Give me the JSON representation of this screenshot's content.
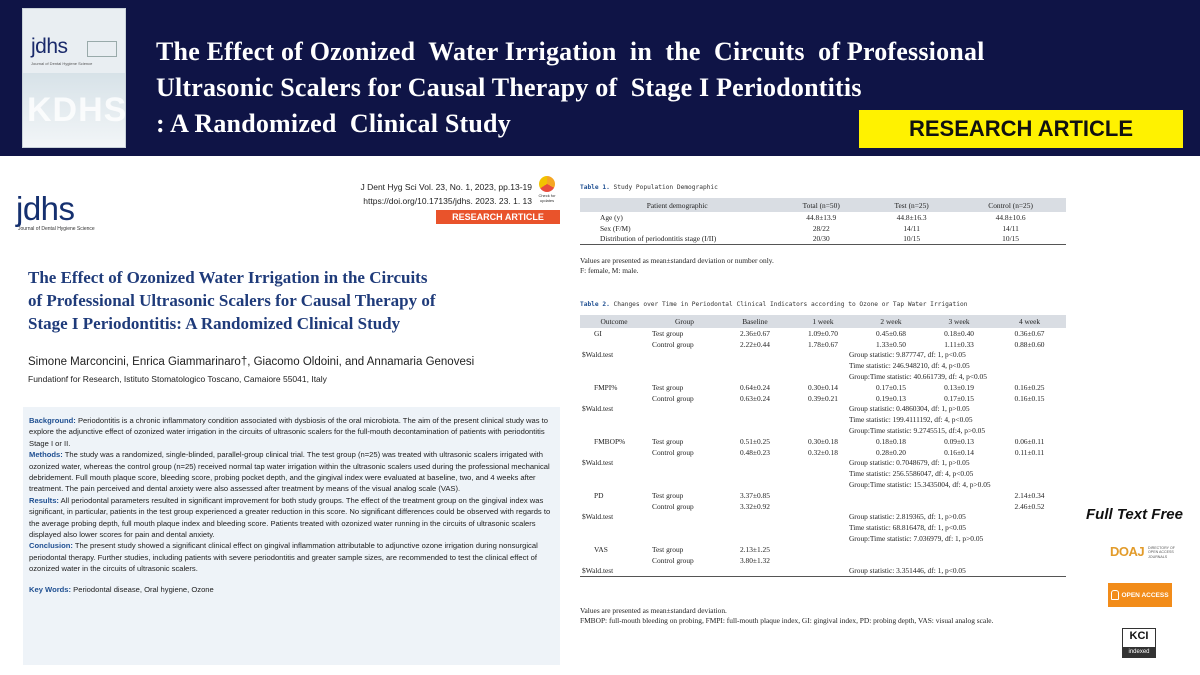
{
  "banner": {
    "title_lines": [
      "The Effect of Ozonized  Water Irrigation  in  the  Circuits  of Professional",
      "Ultrasonic Scalers for Causal Therapy of  Stage I Periodontitis",
      ": A Randomized  Clinical Study"
    ],
    "badge": "RESEARCH ARTICLE",
    "cover": {
      "logo": "jdhs",
      "subtitle": "Journal of Dental Hygiene Science",
      "watermark": "KDHS"
    }
  },
  "paper": {
    "logo": "jdhs",
    "logo_sub": "Journal of Dental Hygiene Science",
    "citation_line1": "J Dent Hyg Sci Vol. 23, No. 1, 2023, pp.13-19",
    "citation_line2": "https://doi.org/10.17135/jdhs. 2023. 23. 1. 13",
    "check_label": "Check for updates",
    "article_type": "RESEARCH ARTICLE",
    "title_lines": [
      "The Effect of Ozonized Water Irrigation in the Circuits",
      "of Professional Ultrasonic Scalers for Causal Therapy of",
      "Stage I Periodontitis: A Randomized Clinical Study"
    ],
    "authors": "Simone Marconcini, Enrica Giammarinaro†, Giacomo Oldoini, and Annamaria Genovesi",
    "affiliation": "Fundationf for Research, Istituto Stomatologico Toscano, Camaiore 55041, Italy",
    "abstract": [
      {
        "heading": "Background:",
        "text": " Periodontitis is a chronic inflammatory condition associated with dysbiosis of the oral microbiota. The aim of the present clinical study was to explore the adjunctive effect of ozonized water irrigation in the circuits of ultrasonic scalers for the full-mouth decontamination of patients with periodontitis Stage I or II."
      },
      {
        "heading": "Methods:",
        "text": " The study was a randomized, single-blinded, parallel-group clinical trial. The test group (n=25) was treated with ultrasonic scalers irrigated with ozonized water, whereas the control group (n=25) received normal tap water irrigation within the ultrasonic scalers used during the professional mechanical debridement. Full mouth plaque score, bleeding score, probing pocket depth, and the gingival index were evaluated at baseline, two, and 4 weeks after treatment. The pain perceived and dental anxiety were also assessed after treatment by means of the visual analog scale (VAS)."
      },
      {
        "heading": "Results:",
        "text": " All periodontal parameters resulted in significant improvement for both study groups. The effect of the treatment group on the gingival index was significant, in particular, patients in the test group experienced a greater reduction in this score. No significant differences could be observed with regards to the average probing depth, full mouth plaque index and bleeding score. Patients treated with ozonized water running in the circuits of ultrasonic scalers displayed also lower scores for pain and dental anxiety."
      },
      {
        "heading": "Conclusion:",
        "text": " The present study showed a significant clinical effect on gingival inflammation attributable to adjunctive ozone irrigation during nonsurgical periodontal therapy. Further studies, including patients with severe periodontitis and greater sample sizes, are recommended to test the clinical effect of ozonized water in the circuits of ultrasonic scalers."
      }
    ],
    "keywords_heading": "Key Words:",
    "keywords": " Periodontal disease, Oral hygiene, Ozone"
  },
  "table1": {
    "label": "Table 1.",
    "caption": " Study Population Demographic",
    "headers": [
      "Patient demographic",
      "Total (n=50)",
      "Test (n=25)",
      "Control (n=25)"
    ],
    "rows": [
      [
        "Age (y)",
        "44.8±13.9",
        "44.8±16.3",
        "44.8±10.6"
      ],
      [
        "Sex (F/M)",
        "28/22",
        "14/11",
        "14/11"
      ],
      [
        "Distribution of periodontitis stage (I/II)",
        "20/30",
        "10/15",
        "10/15"
      ]
    ],
    "notes": [
      "Values are presented as mean±standard deviation or number only.",
      "F: female, M: male."
    ]
  },
  "table2": {
    "label": "Table 2.",
    "caption": " Changes over Time in Periodontal Clinical Indicators according to Ozone or Tap Water Irrigation",
    "headers": [
      "Outcome",
      "Group",
      "Baseline",
      "1 week",
      "2 week",
      "3 week",
      "4 week"
    ],
    "rows": [
      [
        "GI",
        "Test group",
        "2.36±0.67",
        "1.09±0.70",
        "0.45±0.68",
        "0.18±0.40",
        "0.36±0.67"
      ],
      [
        "",
        "Control group",
        "2.22±0.44",
        "1.78±0.67",
        "1.33±0.50",
        "1.11±0.33",
        "0.88±0.60"
      ],
      [
        "$Wald.test",
        "",
        "",
        "Group statistic: 9.877747, df: 1, p<0.05",
        "",
        "",
        ""
      ],
      [
        "",
        "",
        "",
        "Time statistic: 246.948210, df: 4, p<0.05",
        "",
        "",
        ""
      ],
      [
        "",
        "",
        "",
        "Group:Time statistic: 40.661739, df: 4, p<0.05",
        "",
        "",
        ""
      ],
      [
        "FMPI%",
        "Test group",
        "0.64±0.24",
        "0.30±0.14",
        "0.17±0.15",
        "0.13±0.19",
        "0.16±0.25"
      ],
      [
        "",
        "Control group",
        "0.63±0.24",
        "0.39±0.21",
        "0.19±0.13",
        "0.17±0.15",
        "0.16±0.15"
      ],
      [
        "$Wald.test",
        "",
        "",
        "Group statistic: 0.4860304, df: 1, p>0.05",
        "",
        "",
        ""
      ],
      [
        "",
        "",
        "",
        "Time statistic: 199.4111192, df: 4, p<0.05",
        "",
        "",
        ""
      ],
      [
        "",
        "",
        "",
        "Group:Time statistic: 9.2745515, df:4, p>0.05",
        "",
        "",
        ""
      ],
      [
        "FMBOP%",
        "Test group",
        "0.51±0.25",
        "0.30±0.18",
        "0.18±0.18",
        "0.09±0.13",
        "0.06±0.11"
      ],
      [
        "",
        "Control group",
        "0.48±0.23",
        "0.32±0.18",
        "0.28±0.20",
        "0.16±0.14",
        "0.11±0.11"
      ],
      [
        "$Wald.test",
        "",
        "",
        "Group statistic: 0.7048679, df: 1, p>0.05",
        "",
        "",
        ""
      ],
      [
        "",
        "",
        "",
        "Time statistic: 256.5586047, df: 4, p<0.05",
        "",
        "",
        ""
      ],
      [
        "",
        "",
        "",
        "Group:Time statistic: 15.3435004, df: 4, p>0.05",
        "",
        "",
        ""
      ],
      [
        "PD",
        "Test group",
        "3.37±0.85",
        "",
        "",
        "",
        "2.14±0.34"
      ],
      [
        "",
        "Control group",
        "3.32±0.92",
        "",
        "",
        "",
        "2.46±0.52"
      ],
      [
        "$Wald.test",
        "",
        "",
        "Group statistic: 2.819365, df: 1, p>0.05",
        "",
        "",
        ""
      ],
      [
        "",
        "",
        "",
        "Time statistic: 68.816478, df: 1, p<0.05",
        "",
        "",
        ""
      ],
      [
        "",
        "",
        "",
        "Group:Time statistic: 7.036979, df: 1, p>0.05",
        "",
        "",
        ""
      ],
      [
        "VAS",
        "Test group",
        "2.13±1.25",
        "",
        "",
        "",
        ""
      ],
      [
        "",
        "Control group",
        "3.80±1.32",
        "",
        "",
        "",
        ""
      ],
      [
        "$Wald.test",
        "",
        "",
        "Group statistic: 3.351446, df: 1, p<0.05",
        "",
        "",
        ""
      ]
    ],
    "notes": [
      "Values are presented as mean±standard deviation.",
      "FMBOP: full-mouth bleeding on probing, FMPI: full-mouth plaque index, GI: gingival index, PD: probing depth, VAS: visual analog scale."
    ]
  },
  "sidebar": {
    "full_text": "Full Text Free",
    "doaj": "DOAJ",
    "doaj_sub": "DIRECTORY OF OPEN ACCESS JOURNALS",
    "open_access": "OPEN ACCESS",
    "kci": "KCI",
    "kci_sub": "indexed"
  },
  "colors": {
    "banner_bg": "#0f1446",
    "badge_bg": "#fff200",
    "title_blue": "#1f3b7a",
    "article_orange": "#e9532b",
    "oa_orange": "#f28c1a"
  }
}
